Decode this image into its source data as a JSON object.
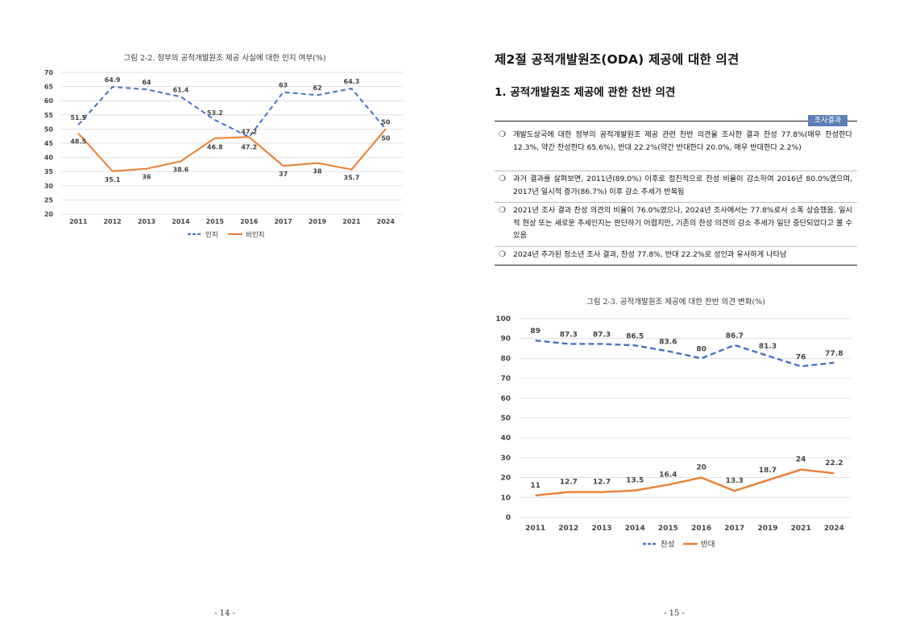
{
  "left_page": {
    "figure_caption": "그림 2-2. 정부의 공적개발원조 제공 사실에 대한 인지 여부(%)",
    "page_number": "- 14 -"
  },
  "right_page": {
    "section_title": "제2절 공적개발원조(ODA) 제공에 대한 의견",
    "subsection_title": "1. 공적개발원조 제공에 관한 찬반 의견",
    "result_tag": "조사결과",
    "bullets": [
      "개발도상국에 대한 정부의 공적개발원조 제공 관련 찬반 의견을 조사한 결과 찬성 77.8%(매우 찬성한다 12.3%, 약간 찬성한다 65.6%), 반대 22.2%(약간 반대한다 20.0%, 매우 반대한다 2.2%)",
      "과거 결과를 살펴보면, 2011년(89.0%) 이후로 점진적으로 찬성 비율이 감소하여 2016년 80.0%였으며, 2017년 일시적 증가(86.7%) 이후 감소 추세가 반복됨",
      "2021년 조사 결과 찬성 의견의 비율이 76.0%였으나, 2024년 조사에서는 77.8%로서 소폭 상승했음. 일시적 현상 또는 새로운 추세인지는 판단하기 어렵지만, 기존의 찬성 의견의 감소 추세가 일단 중단되었다고 볼 수 있음",
      "2024년 추가된 청소년 조사 결과, 찬성 77.8%, 반대 22.2%로 성인과 유사하게 나타남"
    ],
    "bullet_mark": "❍",
    "figure_caption": "그림 2-3. 공적개발원조 제공에 대한 찬반 의견 변화(%)",
    "page_number": "- 15 -"
  },
  "chart_data": [
    {
      "type": "line",
      "x": [
        "2011",
        "2012",
        "2013",
        "2014",
        "2015",
        "2016",
        "2017",
        "2019",
        "2021",
        "2024"
      ],
      "ylim": [
        20,
        70
      ],
      "yticks": [
        20,
        25,
        30,
        35,
        40,
        45,
        50,
        55,
        60,
        65,
        70
      ],
      "grid": true,
      "legend_placement": "bottom",
      "series": [
        {
          "name": "인지",
          "color": "#4472c4",
          "style": "dashed",
          "values": [
            51.5,
            64.9,
            64,
            61.4,
            53.2,
            47.2,
            63,
            62,
            64.3,
            50
          ]
        },
        {
          "name": "비인지",
          "color": "#ed7d31",
          "style": "solid",
          "values": [
            48.5,
            35.1,
            36,
            38.6,
            46.8,
            47.2,
            37,
            38,
            35.7,
            50
          ]
        }
      ]
    },
    {
      "type": "line",
      "x": [
        "2011",
        "2012",
        "2013",
        "2014",
        "2015",
        "2016",
        "2017",
        "2019",
        "2021",
        "2024"
      ],
      "ylim": [
        0,
        100
      ],
      "yticks": [
        0,
        10,
        20,
        30,
        40,
        50,
        60,
        70,
        80,
        90,
        100
      ],
      "grid": true,
      "legend_placement": "bottom",
      "series": [
        {
          "name": "찬성",
          "color": "#4472c4",
          "style": "dashed",
          "values": [
            89,
            87.3,
            87.3,
            86.5,
            83.6,
            80,
            86.7,
            81.3,
            76,
            77.8
          ]
        },
        {
          "name": "반대",
          "color": "#ed7d31",
          "style": "solid",
          "values": [
            11,
            12.7,
            12.7,
            13.5,
            16.4,
            20,
            13.3,
            18.7,
            24,
            22.2
          ]
        }
      ]
    }
  ]
}
